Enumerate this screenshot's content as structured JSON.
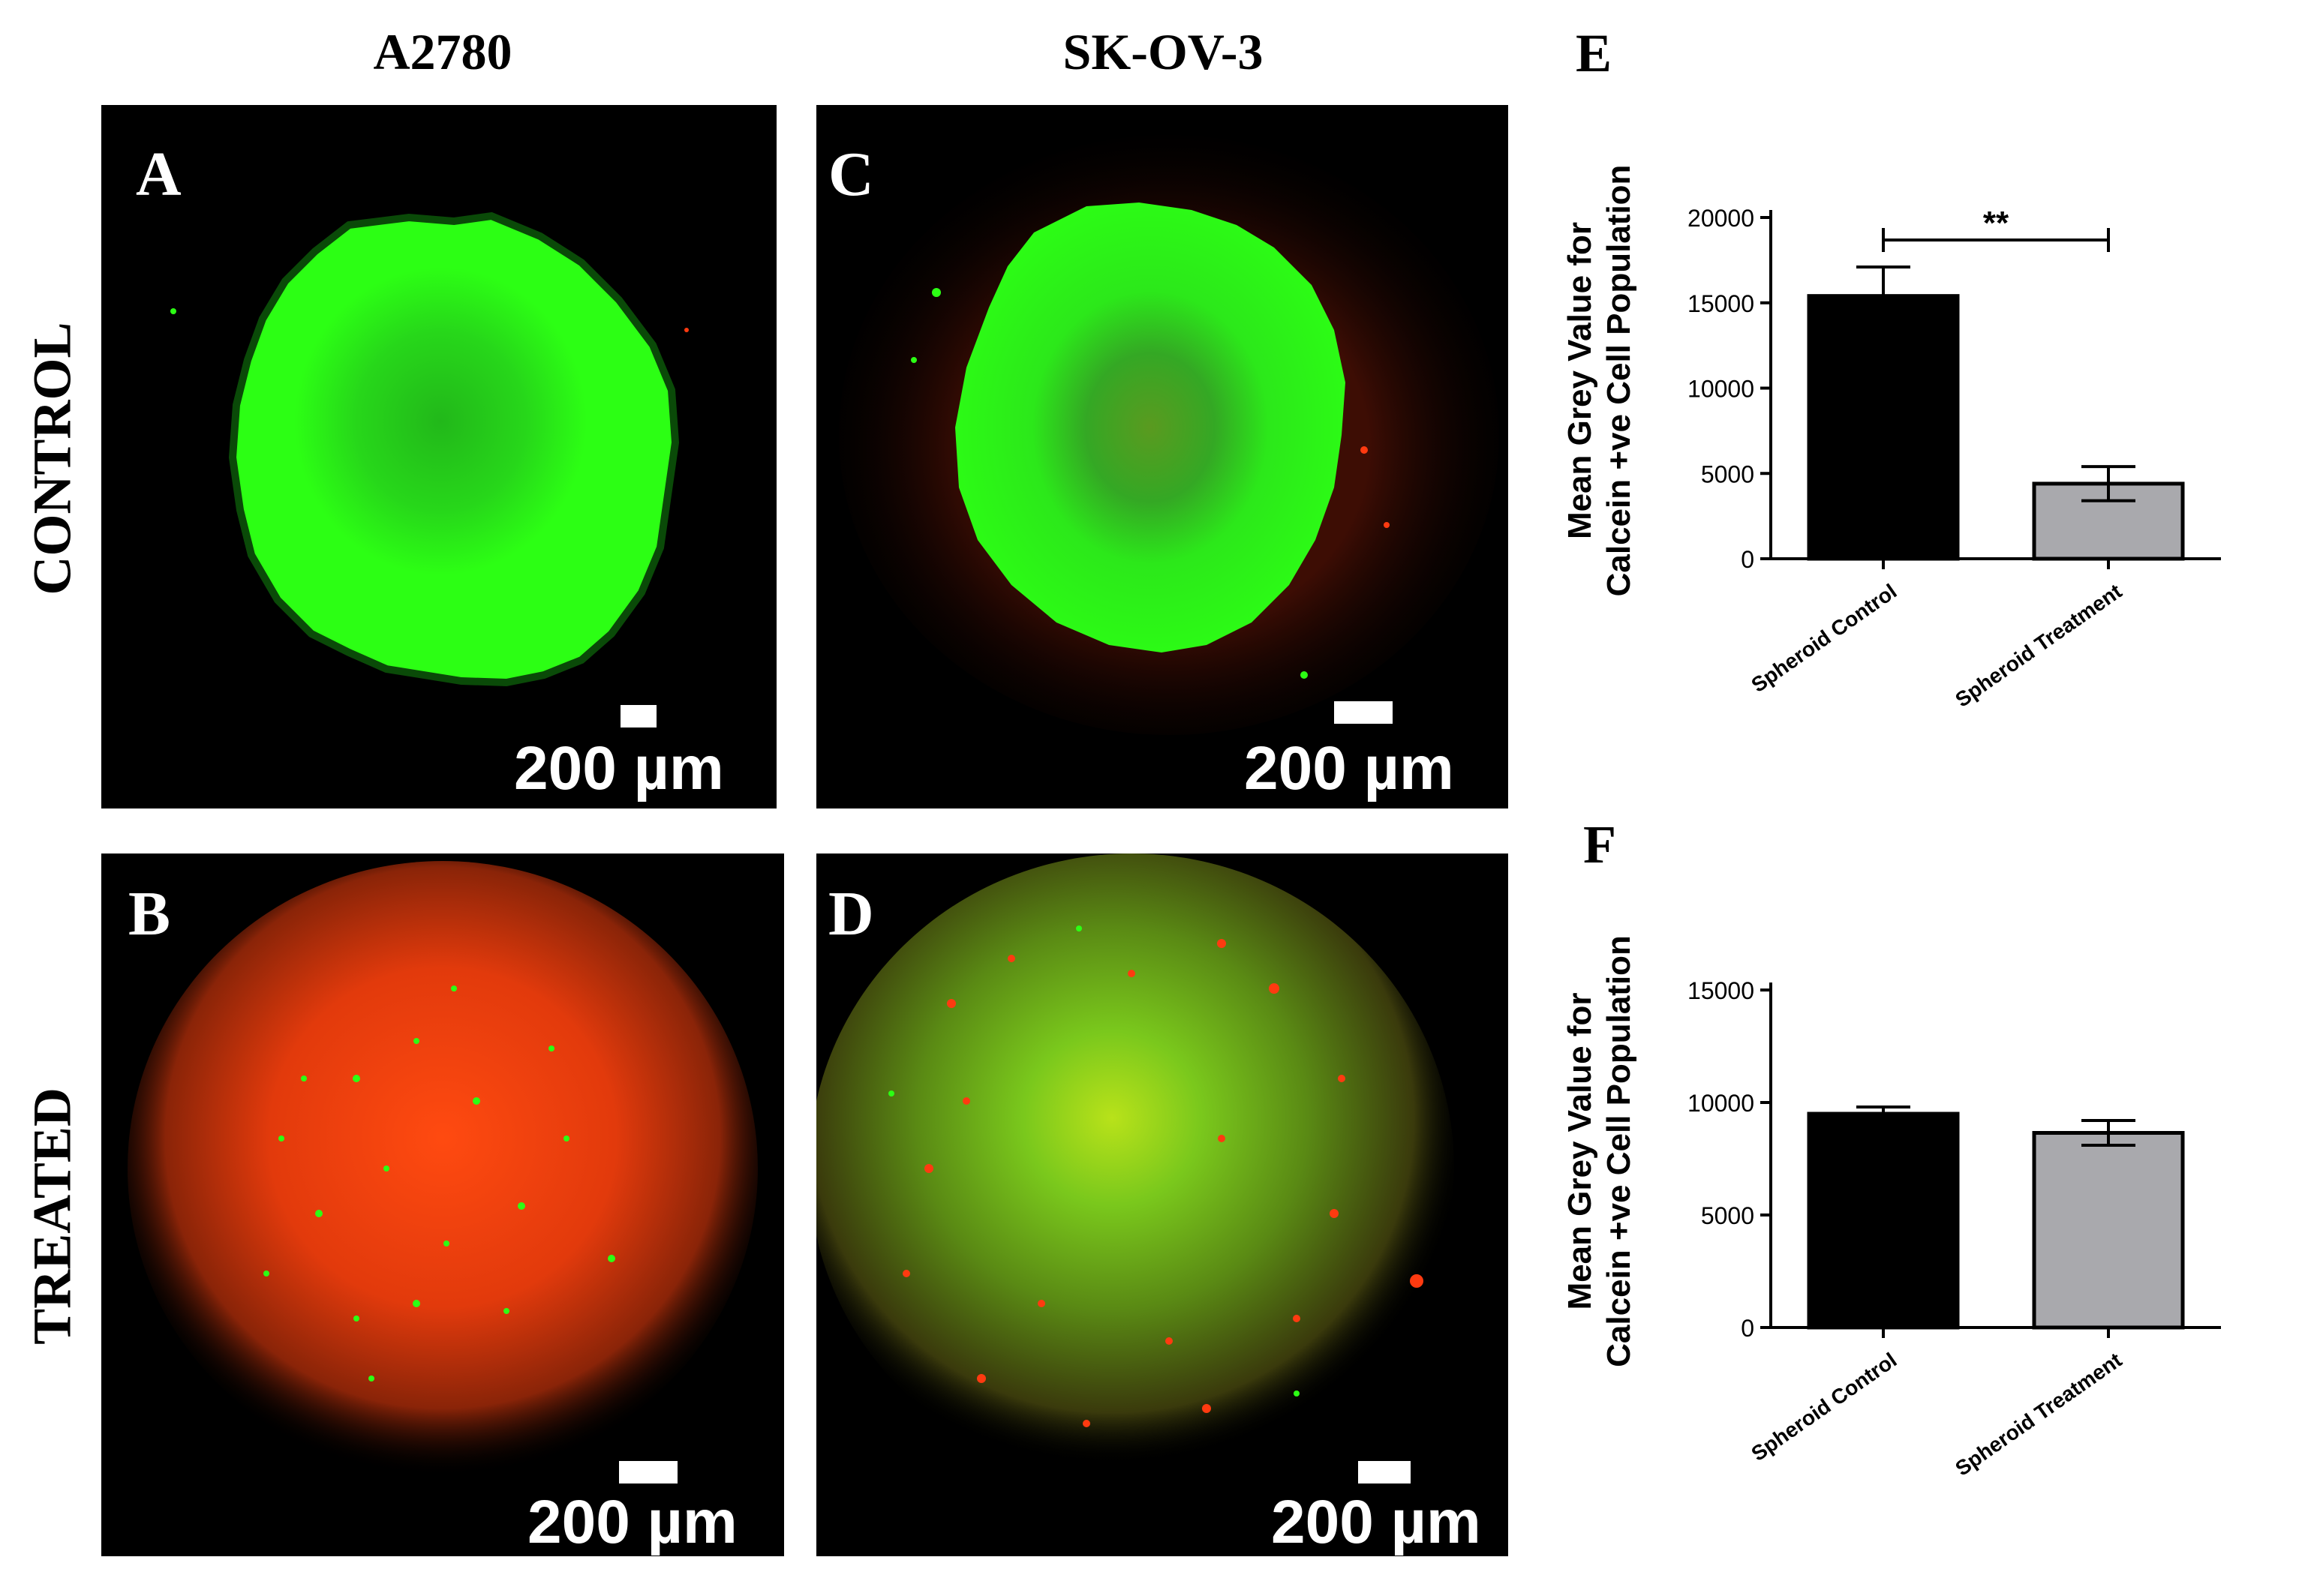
{
  "columns": {
    "left": "A2780",
    "right": "SK-OV-3"
  },
  "rows": {
    "top": "CONTROL",
    "bottom": "TREATED"
  },
  "panels": [
    {
      "letter": "A",
      "scale_label": "200 µm"
    },
    {
      "letter": "C",
      "scale_label": "200 µm"
    },
    {
      "letter": "B",
      "scale_label": "200 µm"
    },
    {
      "letter": "D",
      "scale_label": "200 µm"
    }
  ],
  "colors": {
    "calcein_green": "#2cff14",
    "dead_red": "#ff3a10",
    "control_bar": "#000000",
    "treatment_bar": "#a9a9ad"
  },
  "chart_data": [
    {
      "panel": "E",
      "type": "bar",
      "categories": [
        "Spheroid Control",
        "Spheroid Treatment"
      ],
      "values": [
        15400,
        4400
      ],
      "errors": [
        1700,
        1000
      ],
      "ylabel": [
        "Mean Grey Value for",
        "Calcein +ve Cell  Population"
      ],
      "ylim": [
        0,
        20000
      ],
      "yticks": [
        0,
        5000,
        10000,
        15000,
        20000
      ],
      "significance": "**"
    },
    {
      "panel": "F",
      "type": "bar",
      "categories": [
        "Spheroid Control",
        "Spheroid Treatment"
      ],
      "values": [
        9500,
        8650
      ],
      "errors": [
        300,
        550
      ],
      "ylabel": [
        "Mean Grey Value for",
        "Calcein +ve Cell  Population"
      ],
      "ylim": [
        0,
        15000
      ],
      "yticks": [
        0,
        5000,
        10000,
        15000
      ]
    }
  ]
}
